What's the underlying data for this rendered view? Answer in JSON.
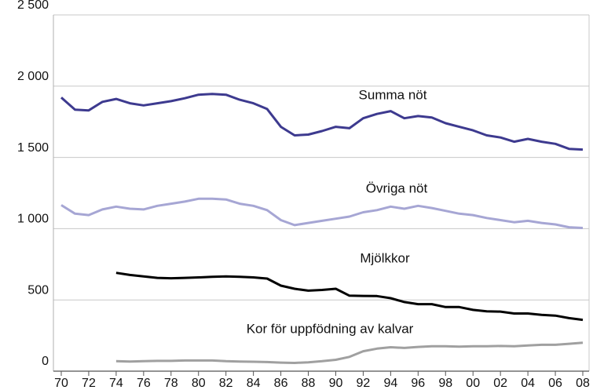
{
  "chart_data": {
    "type": "line",
    "categories": [
      "70",
      null,
      "72",
      null,
      "74",
      null,
      "76",
      null,
      "78",
      null,
      "80",
      null,
      "82",
      null,
      "84",
      null,
      "86",
      null,
      "88",
      null,
      "90",
      null,
      "92",
      null,
      "94",
      null,
      "96",
      null,
      "98",
      null,
      "00",
      null,
      "02",
      null,
      "04",
      null,
      "06",
      null,
      "08"
    ],
    "series": [
      {
        "name": "Summa nöt",
        "color": "#3d3a8f",
        "values": [
          1920,
          1835,
          1830,
          1890,
          1910,
          1880,
          1865,
          1880,
          1895,
          1915,
          1940,
          1945,
          1940,
          1905,
          1880,
          1840,
          1715,
          1655,
          1660,
          1685,
          1715,
          1705,
          1775,
          1805,
          1825,
          1775,
          1790,
          1780,
          1740,
          1715,
          1690,
          1655,
          1640,
          1610,
          1630,
          1610,
          1595,
          1560,
          1555
        ]
      },
      {
        "name": "Övriga nöt",
        "color": "#a6a6d4",
        "values": [
          1165,
          1105,
          1095,
          1135,
          1155,
          1140,
          1135,
          1160,
          1175,
          1190,
          1210,
          1210,
          1205,
          1175,
          1160,
          1130,
          1060,
          1025,
          1040,
          1055,
          1070,
          1085,
          1115,
          1130,
          1155,
          1140,
          1160,
          1145,
          1125,
          1105,
          1095,
          1075,
          1060,
          1045,
          1055,
          1040,
          1030,
          1010,
          1005
        ]
      },
      {
        "name": "Mjölkkor",
        "color": "#000000",
        "values": [
          null,
          null,
          null,
          null,
          690,
          675,
          665,
          655,
          652,
          655,
          658,
          662,
          665,
          662,
          658,
          650,
          600,
          578,
          565,
          570,
          578,
          530,
          528,
          527,
          512,
          485,
          470,
          470,
          450,
          450,
          430,
          420,
          418,
          405,
          405,
          395,
          390,
          372,
          360
        ]
      },
      {
        "name": "Kor för uppfödning av kalvar",
        "color": "#a0a0a0",
        "values": [
          null,
          null,
          null,
          null,
          70,
          68,
          70,
          72,
          72,
          75,
          75,
          75,
          70,
          68,
          66,
          64,
          60,
          58,
          62,
          70,
          80,
          100,
          140,
          158,
          168,
          163,
          170,
          175,
          175,
          172,
          175,
          175,
          177,
          175,
          180,
          185,
          185,
          192,
          200
        ]
      }
    ],
    "ylim": [
      0,
      2500
    ],
    "yticks": [
      0,
      500,
      {
        "value": 1000,
        "label": "1 000"
      },
      {
        "value": 1500,
        "label": "1 500"
      },
      {
        "value": 2000,
        "label": "2 000"
      },
      {
        "value": 2500,
        "label": "2 500"
      }
    ],
    "grid": true
  }
}
